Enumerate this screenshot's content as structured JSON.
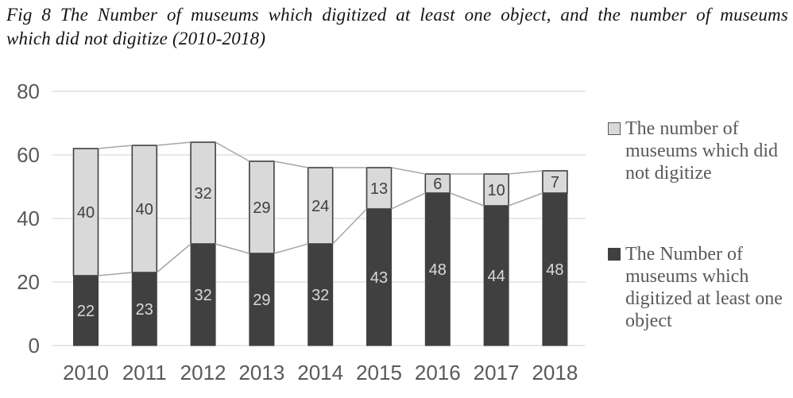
{
  "figure": {
    "title_line1": "Fig 8 The Number of museums which digitized at least one object, and the number of museums",
    "title_line2": "which did not digitize (2010-2018)"
  },
  "chart_data": {
    "type": "bar",
    "subtype": "stacked-columns-with-series-lines",
    "title": "Fig 8 The Number of museums which digitized at least one object, and the number of museums which did not digitize (2010-2018)",
    "categories": [
      "2010",
      "2011",
      "2012",
      "2013",
      "2014",
      "2015",
      "2016",
      "2017",
      "2018"
    ],
    "series": [
      {
        "name": "The Number of museums which digitized at least one object",
        "values": [
          22,
          23,
          32,
          29,
          32,
          43,
          48,
          44,
          48
        ],
        "color": "#404040",
        "label_color": "#d9d9d9"
      },
      {
        "name": "The number of museums which did not digitize",
        "values": [
          40,
          40,
          32,
          29,
          24,
          13,
          6,
          10,
          7
        ],
        "color": "#d9d9d9",
        "label_color": "#404040"
      }
    ],
    "stack_totals": [
      62,
      63,
      64,
      58,
      56,
      56,
      54,
      54,
      55
    ],
    "ylim": [
      0,
      80
    ],
    "yticks": [
      0,
      20,
      40,
      60,
      80
    ],
    "xlabel": "",
    "ylabel": "",
    "grid": true,
    "legend_position": "right",
    "gridline_color": "#d9d9d9",
    "series_line_color": "#a6a6a6",
    "axis_text_color": "#595959",
    "bar_border_color": "#404040"
  },
  "legend": {
    "items": [
      {
        "label": "The number of museums which did not digitize",
        "swatch_color": "#d9d9d9",
        "swatch_border": "#595959"
      },
      {
        "label": "The Number of museums which digitized at least one object",
        "swatch_color": "#404040",
        "swatch_border": "#404040"
      }
    ]
  }
}
